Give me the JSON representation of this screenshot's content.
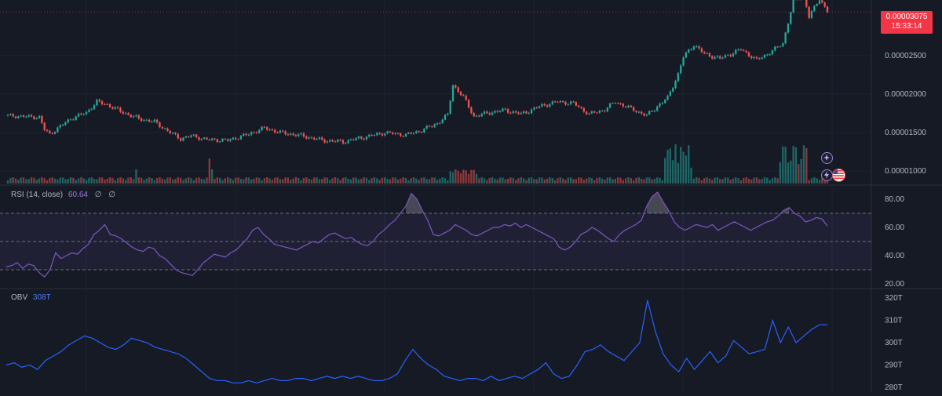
{
  "price_panel": {
    "last_price": "0.00003075",
    "countdown": "15:33:14",
    "axis_labels": [
      "0.00002500",
      "0.00002000",
      "0.00001500",
      "0.00001000"
    ],
    "colors": {
      "up": "#26a69a",
      "down": "#ef5350",
      "badge": "#f23645",
      "background": "#161a25"
    }
  },
  "rsi_panel": {
    "name": "RSI (14, close)",
    "value": "60.64",
    "extra_1": "∅",
    "extra_2": "∅",
    "axis_labels": [
      "80.00",
      "60.00",
      "40.00",
      "20.00"
    ],
    "line_color": "#7e57c2"
  },
  "obv_panel": {
    "name": "OBV",
    "value": "308T",
    "axis_labels": [
      "320T",
      "310T",
      "300T",
      "290T",
      "280T"
    ],
    "line_color": "#2962ff"
  },
  "icons": [
    "compass-icon",
    "lightning-icon",
    "us-flag-icon"
  ],
  "chart_data": [
    {
      "type": "candlestick",
      "title": "",
      "ylim": [
        8.6e-06,
        3.2e-05
      ],
      "y_ticks": [
        2.5e-05,
        2e-05,
        1.5e-05,
        1e-05
      ],
      "volume_series_relative": true
    },
    {
      "type": "line",
      "name": "RSI (14, close)",
      "ylim": [
        20,
        80
      ],
      "bands": [
        30,
        50,
        70
      ],
      "values": [
        32,
        33,
        35,
        31,
        34,
        33,
        28,
        25,
        30,
        42,
        38,
        40,
        42,
        41,
        45,
        48,
        55,
        58,
        62,
        55,
        54,
        52,
        49,
        46,
        44,
        43,
        46,
        45,
        40,
        38,
        34,
        30,
        28,
        27,
        26,
        30,
        35,
        38,
        41,
        40,
        39,
        42,
        44,
        48,
        52,
        58,
        60,
        55,
        52,
        48,
        47,
        46,
        45,
        44,
        46,
        48,
        50,
        49,
        52,
        55,
        56,
        54,
        52,
        53,
        50,
        48,
        47,
        50,
        55,
        58,
        62,
        65,
        70,
        75,
        84,
        80,
        72,
        65,
        55,
        54,
        56,
        58,
        62,
        60,
        58,
        55,
        54,
        56,
        58,
        60,
        60,
        62,
        61,
        63,
        60,
        62,
        60,
        58,
        56,
        54,
        52,
        46,
        44,
        46,
        50,
        55,
        57,
        60,
        58,
        55,
        52,
        50,
        55,
        58,
        60,
        62,
        65,
        75,
        82,
        85,
        78,
        72,
        64,
        60,
        58,
        60,
        62,
        61,
        60,
        62,
        58,
        60,
        62,
        64,
        62,
        60,
        58,
        60,
        62,
        64,
        65,
        68,
        72,
        74,
        70,
        68,
        64,
        65,
        67,
        66,
        61
      ]
    },
    {
      "type": "line",
      "name": "OBV",
      "ylim": [
        280,
        320
      ],
      "y_ticks": [
        320,
        310,
        300,
        290,
        280
      ],
      "values": [
        290,
        291,
        289,
        290,
        288,
        292,
        294,
        296,
        299,
        301,
        303,
        302,
        300,
        298,
        297,
        299,
        302,
        301,
        300,
        298,
        297,
        296,
        295,
        293,
        290,
        287,
        284,
        283,
        283,
        282,
        282,
        283,
        282,
        283,
        284,
        283,
        283,
        284,
        284,
        283,
        284,
        285,
        284,
        285,
        284,
        285,
        284,
        283,
        283,
        284,
        286,
        292,
        297,
        293,
        290,
        288,
        285,
        284,
        283,
        284,
        284,
        283,
        285,
        283,
        284,
        285,
        284,
        286,
        288,
        291,
        286,
        284,
        285,
        290,
        296,
        297,
        299,
        296,
        294,
        292,
        296,
        300,
        319,
        305,
        295,
        290,
        287,
        293,
        288,
        292,
        296,
        291,
        294,
        301,
        298,
        295,
        296,
        297,
        310,
        300,
        307,
        300,
        303,
        306,
        308,
        308
      ]
    }
  ]
}
